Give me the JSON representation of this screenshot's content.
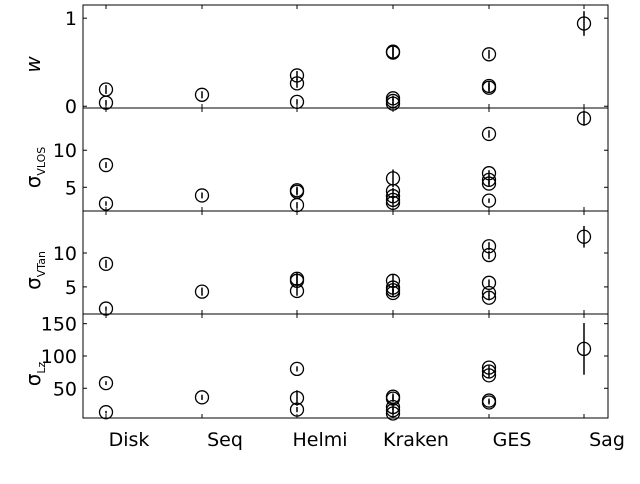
{
  "chart_data": {
    "type": "scatter",
    "categories": [
      "Disk",
      "Seq",
      "Helmi",
      "Kraken",
      "GES",
      "Sag"
    ],
    "marker": "open-circle-with-error-bars",
    "color": "#000000",
    "panels": [
      {
        "id": "w",
        "ylabel": "w",
        "ylim": [
          -0.02,
          1.15
        ],
        "yticks": [
          0,
          1
        ],
        "ytick_labels": [
          "0",
          "1"
        ],
        "points": [
          {
            "category": "Disk",
            "y": 0.19,
            "yerr": 0.05
          },
          {
            "category": "Disk",
            "y": 0.04,
            "yerr": 0.03
          },
          {
            "category": "Seq",
            "y": 0.13,
            "yerr": 0.04
          },
          {
            "category": "Helmi",
            "y": 0.35,
            "yerr": 0.05
          },
          {
            "category": "Helmi",
            "y": 0.26,
            "yerr": 0.05
          },
          {
            "category": "Helmi",
            "y": 0.05,
            "yerr": 0.03
          },
          {
            "category": "Kraken",
            "y": 0.62,
            "yerr": 0.06
          },
          {
            "category": "Kraken",
            "y": 0.61,
            "yerr": 0.06
          },
          {
            "category": "Kraken",
            "y": 0.09,
            "yerr": 0.03
          },
          {
            "category": "Kraken",
            "y": 0.06,
            "yerr": 0.03
          },
          {
            "category": "Kraken",
            "y": 0.03,
            "yerr": 0.02
          },
          {
            "category": "GES",
            "y": 0.59,
            "yerr": 0.05
          },
          {
            "category": "GES",
            "y": 0.23,
            "yerr": 0.05
          },
          {
            "category": "GES",
            "y": 0.21,
            "yerr": 0.05
          },
          {
            "category": "Sag",
            "y": 0.94,
            "yerr": 0.14
          }
        ]
      },
      {
        "id": "sigma-vlos",
        "ylabel": "σ",
        "ylabel_sub": "VLOS",
        "ylim": [
          1.8,
          15.7
        ],
        "yticks": [
          5,
          10
        ],
        "ytick_labels": [
          "5",
          "10"
        ],
        "points": [
          {
            "category": "Disk",
            "y": 8.0,
            "yerr": 0.4
          },
          {
            "category": "Disk",
            "y": 2.8,
            "yerr": 0.3
          },
          {
            "category": "Seq",
            "y": 3.9,
            "yerr": 0.4
          },
          {
            "category": "Helmi",
            "y": 4.6,
            "yerr": 0.5
          },
          {
            "category": "Helmi",
            "y": 4.4,
            "yerr": 0.5
          },
          {
            "category": "Helmi",
            "y": 2.6,
            "yerr": 0.4
          },
          {
            "category": "Kraken",
            "y": 6.2,
            "yerr": 1.2
          },
          {
            "category": "Kraken",
            "y": 4.5,
            "yerr": 0.4
          },
          {
            "category": "Kraken",
            "y": 3.8,
            "yerr": 0.4
          },
          {
            "category": "Kraken",
            "y": 3.3,
            "yerr": 0.4
          },
          {
            "category": "Kraken",
            "y": 2.9,
            "yerr": 0.4
          },
          {
            "category": "GES",
            "y": 12.2,
            "yerr": 0.5
          },
          {
            "category": "GES",
            "y": 6.9,
            "yerr": 0.4
          },
          {
            "category": "GES",
            "y": 6.0,
            "yerr": 0.6
          },
          {
            "category": "GES",
            "y": 5.5,
            "yerr": 0.4
          },
          {
            "category": "GES",
            "y": 3.2,
            "yerr": 0.3
          },
          {
            "category": "Sag",
            "y": 14.3,
            "yerr": 1.0
          }
        ]
      },
      {
        "id": "sigma-vtan",
        "ylabel": "σ",
        "ylabel_sub": "VTan",
        "ylim": [
          1.0,
          16.2
        ],
        "yticks": [
          5,
          10
        ],
        "ytick_labels": [
          "5",
          "10"
        ],
        "points": [
          {
            "category": "Disk",
            "y": 8.4,
            "yerr": 0.6
          },
          {
            "category": "Disk",
            "y": 1.8,
            "yerr": 0.3
          },
          {
            "category": "Seq",
            "y": 4.3,
            "yerr": 0.6
          },
          {
            "category": "Helmi",
            "y": 6.2,
            "yerr": 1.0
          },
          {
            "category": "Helmi",
            "y": 5.9,
            "yerr": 1.0
          },
          {
            "category": "Helmi",
            "y": 4.4,
            "yerr": 0.7
          },
          {
            "category": "Kraken",
            "y": 5.9,
            "yerr": 0.9
          },
          {
            "category": "Kraken",
            "y": 4.9,
            "yerr": 0.7
          },
          {
            "category": "Kraken",
            "y": 4.5,
            "yerr": 0.7
          },
          {
            "category": "Kraken",
            "y": 4.1,
            "yerr": 0.6
          },
          {
            "category": "GES",
            "y": 11.0,
            "yerr": 0.6
          },
          {
            "category": "GES",
            "y": 9.7,
            "yerr": 0.6
          },
          {
            "category": "GES",
            "y": 5.6,
            "yerr": 0.5
          },
          {
            "category": "GES",
            "y": 4.1,
            "yerr": 0.4
          },
          {
            "category": "GES",
            "y": 3.4,
            "yerr": 0.4
          },
          {
            "category": "Sag",
            "y": 12.4,
            "yerr": 1.6
          }
        ]
      },
      {
        "id": "sigma-lz",
        "ylabel": "σ",
        "ylabel_sub": "Lz",
        "ylim": [
          4,
          165
        ],
        "yticks": [
          50,
          100,
          150
        ],
        "ytick_labels": [
          "50",
          "100",
          "150"
        ],
        "points": [
          {
            "category": "Disk",
            "y": 58,
            "yerr": 3
          },
          {
            "category": "Disk",
            "y": 13,
            "yerr": 2
          },
          {
            "category": "Seq",
            "y": 36,
            "yerr": 4
          },
          {
            "category": "Helmi",
            "y": 80,
            "yerr": 4
          },
          {
            "category": "Helmi",
            "y": 35,
            "yerr": 12
          },
          {
            "category": "Helmi",
            "y": 17,
            "yerr": 4
          },
          {
            "category": "Kraken",
            "y": 37,
            "yerr": 5
          },
          {
            "category": "Kraken",
            "y": 34,
            "yerr": 5
          },
          {
            "category": "Kraken",
            "y": 21,
            "yerr": 5
          },
          {
            "category": "Kraken",
            "y": 16,
            "yerr": 4
          },
          {
            "category": "Kraken",
            "y": 11,
            "yerr": 3
          },
          {
            "category": "GES",
            "y": 82,
            "yerr": 3
          },
          {
            "category": "GES",
            "y": 76,
            "yerr": 4
          },
          {
            "category": "GES",
            "y": 70,
            "yerr": 4
          },
          {
            "category": "GES",
            "y": 31,
            "yerr": 3
          },
          {
            "category": "GES",
            "y": 28,
            "yerr": 3
          },
          {
            "category": "Sag",
            "y": 111,
            "yerr": 40
          }
        ]
      }
    ]
  }
}
